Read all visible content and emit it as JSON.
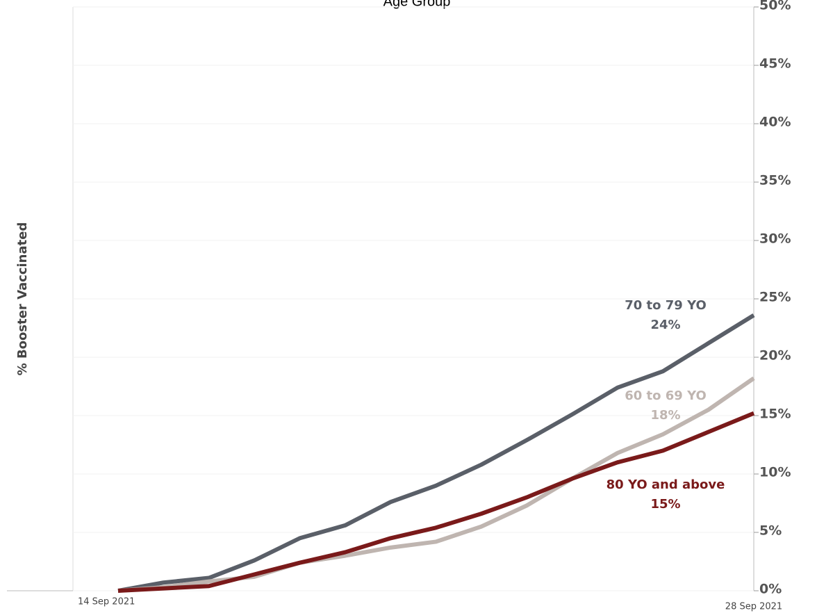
{
  "chart_data": {
    "type": "line",
    "title": "Age Group",
    "y_label": "% Booster Vaccinated",
    "categories": [
      "14 Sep 2021",
      null,
      null,
      null,
      null,
      null,
      null,
      null,
      null,
      null,
      null,
      null,
      null,
      null,
      "28 Sep 2021"
    ],
    "series": [
      {
        "name": "70 to 79 YO",
        "color": "#5a5f68",
        "values": [
          0,
          0.7,
          1.1,
          2.6,
          4.5,
          5.6,
          7.6,
          9.0,
          10.8,
          12.9,
          15.1,
          17.4,
          18.8,
          21.2,
          23.6
        ],
        "end_label": "24%"
      },
      {
        "name": "60 to 69 YO",
        "color": "#bfb5b0",
        "values": [
          0,
          0.3,
          0.8,
          1.2,
          2.4,
          3.0,
          3.7,
          4.2,
          5.5,
          7.3,
          9.6,
          11.8,
          13.4,
          15.5,
          18.2
        ],
        "end_label": "18%"
      },
      {
        "name": "80 YO and above",
        "color": "#7a1a1a",
        "values": [
          0,
          0.2,
          0.4,
          1.4,
          2.4,
          3.3,
          4.5,
          5.4,
          6.6,
          8.0,
          9.6,
          11.0,
          12.0,
          13.6,
          15.2
        ],
        "end_label": "15%"
      }
    ],
    "ylim": [
      0,
      50
    ],
    "yticks": [
      {
        "value": 0,
        "label": "0%"
      },
      {
        "value": 5,
        "label": "5%"
      },
      {
        "value": 10,
        "label": "10%"
      },
      {
        "value": 15,
        "label": "15%"
      },
      {
        "value": 20,
        "label": "20%"
      },
      {
        "value": 25,
        "label": "25%"
      },
      {
        "value": 30,
        "label": "30%"
      },
      {
        "value": 35,
        "label": "35%"
      },
      {
        "value": 40,
        "label": "40%"
      },
      {
        "value": 45,
        "label": "45%"
      },
      {
        "value": 50,
        "label": "50%"
      }
    ],
    "grid": true
  }
}
